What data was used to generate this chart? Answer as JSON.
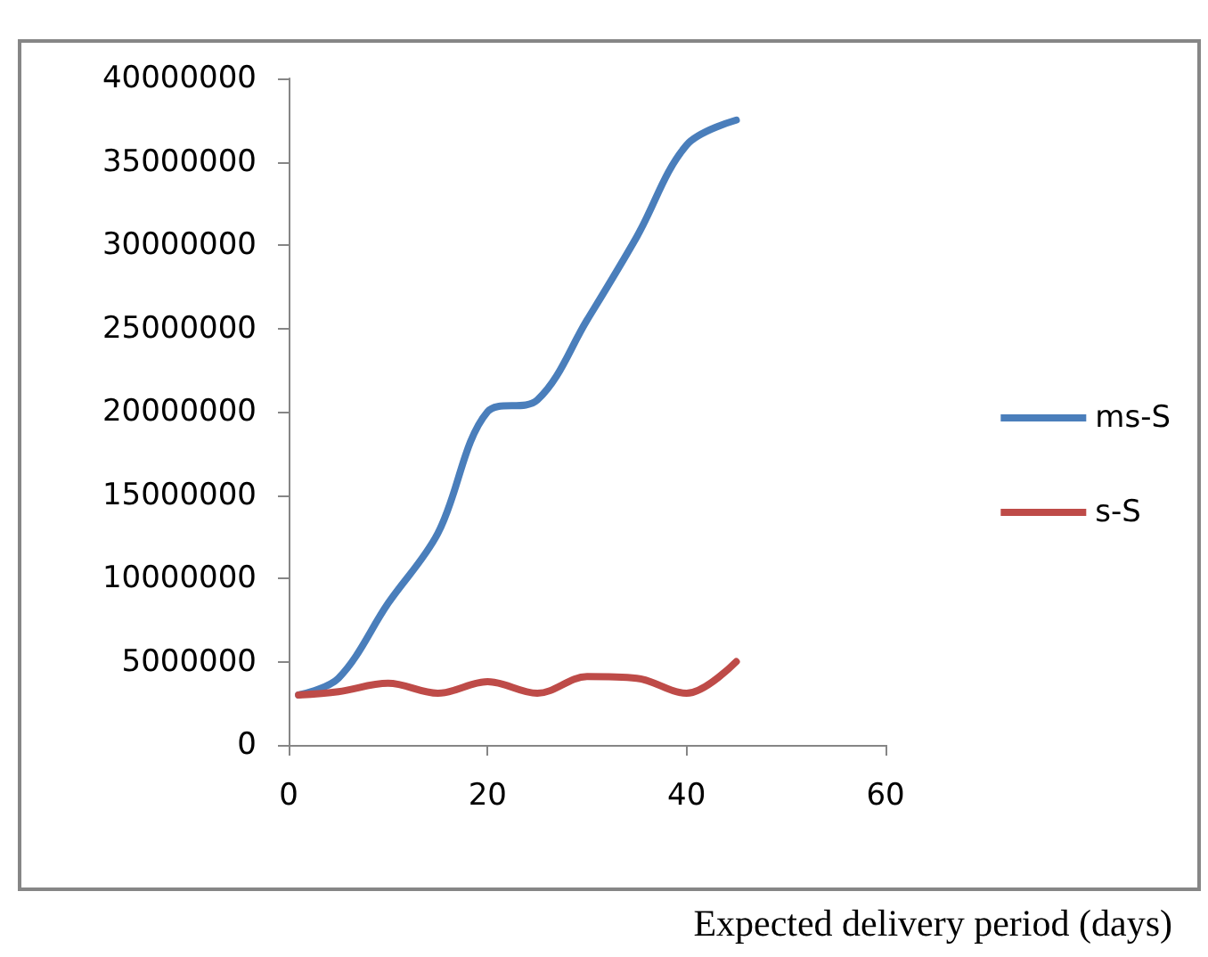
{
  "chart_data": {
    "type": "line",
    "xlabel": "Expected delivery period (days)",
    "x": [
      1,
      5,
      10,
      15,
      20,
      25,
      30,
      35,
      40,
      45
    ],
    "series": [
      {
        "name": "ms-S",
        "color": "#4a7ebb",
        "values": [
          3000000,
          4000000,
          8500000,
          12700000,
          20000000,
          20700000,
          25500000,
          30500000,
          36000000,
          37500000
        ]
      },
      {
        "name": "s-S",
        "color": "#be4b48",
        "values": [
          3000000,
          3200000,
          3700000,
          3100000,
          3800000,
          3100000,
          4100000,
          4000000,
          3100000,
          5000000
        ]
      }
    ],
    "xlim": [
      0,
      60
    ],
    "xticks": [
      0,
      20,
      40,
      60
    ],
    "ylim": [
      0,
      40000000
    ],
    "yticks": [
      0,
      5000000,
      10000000,
      15000000,
      20000000,
      25000000,
      30000000,
      35000000,
      40000000
    ],
    "grid": false,
    "legend": "right",
    "marker": "none",
    "line_style": "solid"
  }
}
